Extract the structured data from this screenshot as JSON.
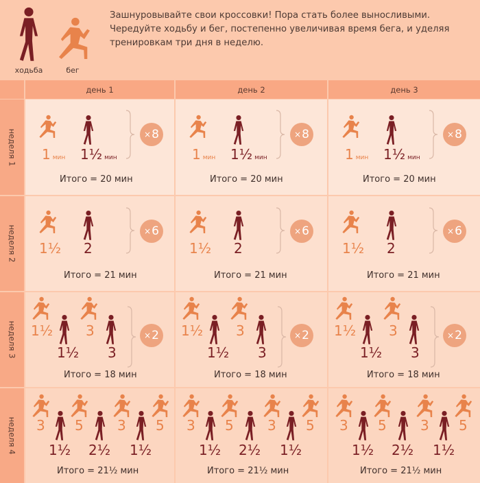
{
  "legend": {
    "walk": {
      "label": "ходьба",
      "icon": "walker-icon"
    },
    "run": {
      "label": "бег",
      "icon": "runner-icon"
    }
  },
  "intro": {
    "lines": [
      "Зашнуровывайте свои кроссовки! Пора стать более выносливыми.",
      "Чередуйте ходьбу и бег, постепенно увеличивая время бега, и уделяя",
      "тренировкам три дня в неделю."
    ]
  },
  "days": [
    "день 1",
    "день 2",
    "день 3"
  ],
  "weeks": [
    {
      "label": "неделя 1",
      "run": "1",
      "run_unit": "мин",
      "walk": "1½",
      "walk_unit": "мин",
      "repeat": "8",
      "total": "Итого  = 20 мин"
    },
    {
      "label": "неделя 2",
      "run": "1½",
      "walk": "2",
      "repeat": "6",
      "total": "Итого  = 21 мин"
    },
    {
      "label": "неделя 3",
      "sequence": [
        {
          "type": "run",
          "value": "1½"
        },
        {
          "type": "walk",
          "value": "1½"
        },
        {
          "type": "run",
          "value": "3"
        },
        {
          "type": "walk",
          "value": "3"
        }
      ],
      "repeat": "2",
      "total": "Итого  = 18 мин"
    },
    {
      "label": "неделя 4",
      "sequence": [
        {
          "type": "run",
          "value": "3"
        },
        {
          "type": "walk",
          "value": "1½"
        },
        {
          "type": "run",
          "value": "5"
        },
        {
          "type": "walk",
          "value": "2½"
        },
        {
          "type": "run",
          "value": "3"
        },
        {
          "type": "walk",
          "value": "1½"
        },
        {
          "type": "run",
          "value": "5"
        }
      ],
      "total": "Итого  = 21½ мин"
    }
  ],
  "colors": {
    "run": "#e8834b",
    "walk": "#7a1f24",
    "badge": "#eea47f",
    "header_bg": "#fcc9ad",
    "bar_bg": "#f9a884"
  },
  "repeat_prefix": "×"
}
